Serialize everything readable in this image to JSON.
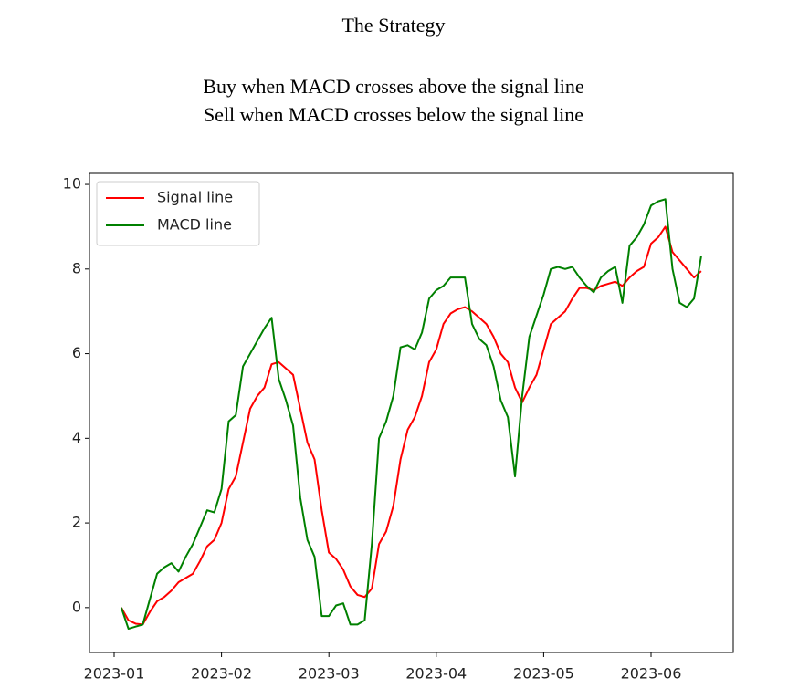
{
  "header": {
    "title": "The Strategy",
    "lines": [
      "Buy when MACD crosses above the signal line",
      "Sell when MACD crosses below the signal line"
    ]
  },
  "chart_data": {
    "type": "line",
    "categories": [
      "2023-01",
      null,
      null,
      null,
      null,
      null,
      null,
      null,
      null,
      null,
      null,
      null,
      null,
      null,
      null,
      "2023-02",
      null,
      null,
      null,
      null,
      null,
      null,
      null,
      null,
      null,
      null,
      null,
      null,
      null,
      null,
      "2023-03",
      null,
      null,
      null,
      null,
      null,
      null,
      null,
      null,
      null,
      null,
      null,
      null,
      null,
      null,
      "2023-04",
      null,
      null,
      null,
      null,
      null,
      null,
      null,
      null,
      null,
      null,
      null,
      null,
      null,
      null,
      "2023-05",
      null,
      null,
      null,
      null,
      null,
      null,
      null,
      null,
      null,
      null,
      null,
      null,
      null,
      null,
      "2023-06",
      null,
      null,
      null,
      null,
      null,
      null,
      null
    ],
    "series": [
      {
        "name": "Signal line",
        "color": "#ff0000",
        "values": [
          null,
          0.0,
          -0.3,
          -0.38,
          -0.4,
          -0.1,
          0.15,
          0.25,
          0.4,
          0.6,
          0.7,
          0.8,
          1.1,
          1.45,
          1.6,
          2.0,
          2.8,
          3.1,
          3.9,
          4.7,
          5.0,
          5.2,
          5.75,
          5.8,
          5.65,
          5.5,
          4.7,
          3.9,
          3.5,
          2.3,
          1.3,
          1.15,
          0.9,
          0.5,
          0.3,
          0.25,
          0.45,
          1.5,
          1.8,
          2.4,
          3.5,
          4.2,
          4.5,
          5.0,
          5.8,
          6.1,
          6.7,
          6.95,
          7.05,
          7.1,
          7.0,
          6.85,
          6.7,
          6.4,
          6.0,
          5.8,
          5.2,
          4.85,
          5.2,
          5.5,
          6.1,
          6.7,
          6.85,
          7.0,
          7.3,
          7.55,
          7.55,
          7.5,
          7.6,
          7.65,
          7.7,
          7.6,
          7.8,
          7.95,
          8.05,
          8.6,
          8.75,
          9.0,
          8.4,
          8.2,
          8.0,
          7.8,
          7.95
        ]
      },
      {
        "name": "MACD line",
        "color": "#008000",
        "values": [
          null,
          0.0,
          -0.5,
          -0.45,
          -0.4,
          0.2,
          0.8,
          0.95,
          1.05,
          0.85,
          1.2,
          1.5,
          1.9,
          2.3,
          2.25,
          2.8,
          4.4,
          4.55,
          5.7,
          6.0,
          6.3,
          6.6,
          6.85,
          5.4,
          4.9,
          4.3,
          2.6,
          1.6,
          1.2,
          -0.2,
          -0.2,
          0.05,
          0.1,
          -0.4,
          -0.4,
          -0.3,
          1.5,
          4.0,
          4.4,
          5.0,
          6.15,
          6.2,
          6.1,
          6.5,
          7.3,
          7.5,
          7.6,
          7.8,
          7.8,
          7.8,
          6.7,
          6.35,
          6.2,
          5.7,
          4.9,
          4.5,
          3.1,
          5.0,
          6.4,
          6.9,
          7.4,
          8.0,
          8.05,
          8.0,
          8.05,
          7.8,
          7.6,
          7.45,
          7.8,
          7.95,
          8.05,
          7.2,
          8.55,
          8.75,
          9.05,
          9.5,
          9.6,
          9.65,
          8.0,
          7.2,
          7.1,
          7.3,
          8.3
        ]
      }
    ],
    "ylim": [
      -1.06,
      10.26
    ],
    "yticks": [
      0,
      2,
      4,
      6,
      8,
      10
    ],
    "legend": "upper left"
  }
}
